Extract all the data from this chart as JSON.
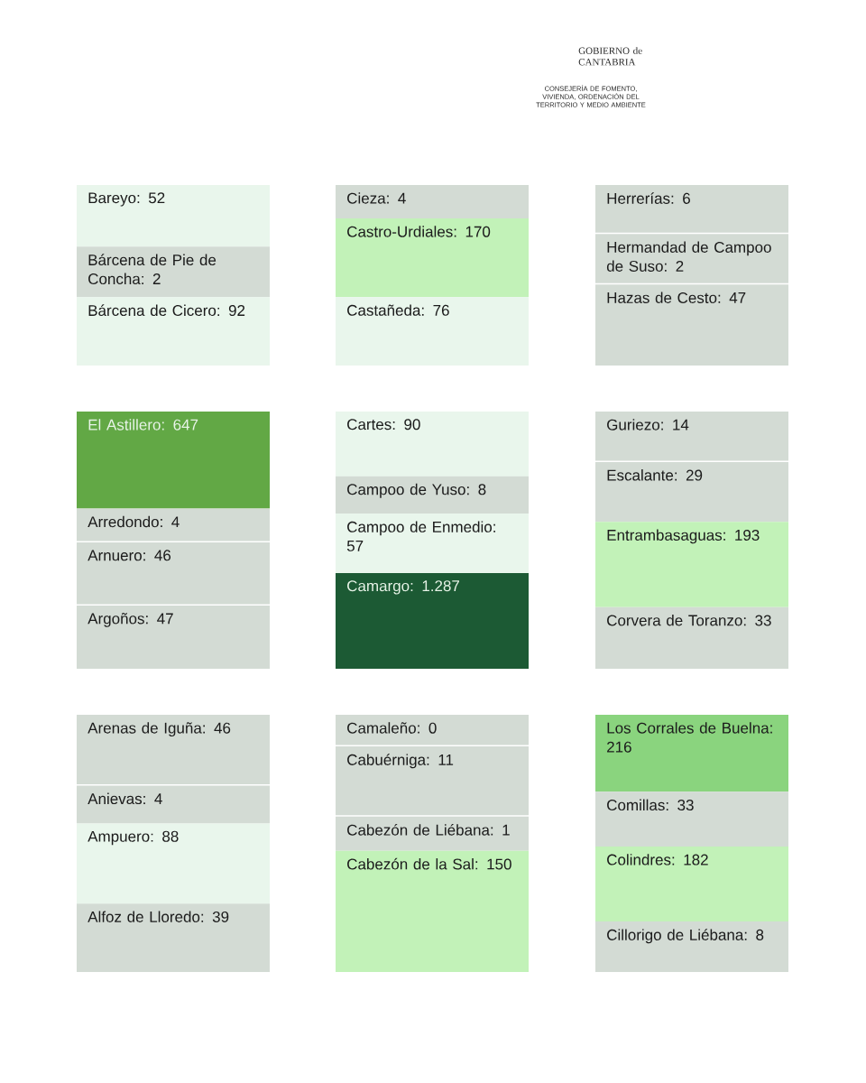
{
  "chart_data": [
    {
      "type": "other",
      "values": [
        52,
        2,
        92
      ],
      "value_labels": [
        "Bareyo: 52",
        "Bárcena de Pie de Concha: 2",
        "Bárcena de Cicero: 92"
      ],
      "colors": [
        "#e9f6ec",
        "#d3dbd4",
        "#e9f6ec"
      ],
      "annotations": [
        "GOBIERNO de CANTABRIA",
        "CONSEJERÍA DE FOMENTO, VIVIENDA, ORDENACIÓN DEL TERRITORIO Y MEDIO AMBIENTE"
      ]
    },
    {
      "type": "other",
      "values": [
        4,
        170,
        76
      ],
      "value_labels": [
        "Cieza: 4",
        "Castro-Urdiales: 170",
        "Castañeda: 76"
      ],
      "colors": [
        "#d3dbd4",
        "#c2f2b8",
        "#e9f6ec"
      ]
    },
    {
      "type": "other",
      "values": [
        6,
        2,
        47
      ],
      "value_labels": [
        "Herrerías: 6",
        "Hermandad de Campoo de Suso: 2",
        "Hazas de Cesto: 47"
      ],
      "colors": [
        "#d3dbd4",
        "#d3dbd4",
        "#d3dbd4"
      ]
    },
    {
      "type": "other",
      "values": [
        647,
        4,
        46,
        47
      ],
      "value_labels": [
        "El Astillero: 647",
        "Arredondo: 4",
        "Arnuero: 46",
        "Argoños: 47"
      ],
      "colors": [
        "#62a845",
        "#d3dbd4",
        "#d3dbd4",
        "#d3dbd4"
      ]
    },
    {
      "type": "other",
      "values": [
        90,
        8,
        57,
        1287
      ],
      "value_labels": [
        "Cartes: 90",
        "Campoo de Yuso: 8",
        "Campoo de Enmedio: 57",
        "Camargo: 1.287"
      ],
      "colors": [
        "#e9f6ec",
        "#d3dbd4",
        "#e9f6ec",
        "#1c5a34"
      ]
    },
    {
      "type": "other",
      "values": [
        14,
        29,
        193,
        33
      ],
      "value_labels": [
        "Guriezo: 14",
        "Escalante: 29",
        "Entrambasaguas: 193",
        "Corvera de Toranzo: 33"
      ],
      "colors": [
        "#d3dbd4",
        "#d3dbd4",
        "#c2f2b8",
        "#d3dbd4"
      ]
    },
    {
      "type": "other",
      "values": [
        46,
        4,
        88,
        39
      ],
      "value_labels": [
        "Arenas de Iguña: 46",
        "Anievas: 4",
        "Ampuero: 88",
        "Alfoz de Lloredo: 39"
      ],
      "colors": [
        "#d3dbd4",
        "#d3dbd4",
        "#e9f6ec",
        "#d3dbd4"
      ]
    },
    {
      "type": "other",
      "values": [
        0,
        11,
        1,
        150
      ],
      "value_labels": [
        "Camaleño: 0",
        "Cabuérniga: 11",
        "Cabezón de Liébana: 1",
        "Cabezón de la Sal: 150"
      ],
      "colors": [
        "#d3dbd4",
        "#d3dbd4",
        "#d3dbd4",
        "#c2f2b8"
      ]
    },
    {
      "type": "other",
      "values": [
        216,
        33,
        182,
        8
      ],
      "value_labels": [
        "Los Corrales de Buelna: 216",
        "Comillas: 33",
        "Colindres: 182",
        "Cillorigo de Liébana: 8"
      ],
      "colors": [
        "#8ad47e",
        "#d3dbd4",
        "#c2f2b8",
        "#d3dbd4"
      ]
    }
  ]
}
